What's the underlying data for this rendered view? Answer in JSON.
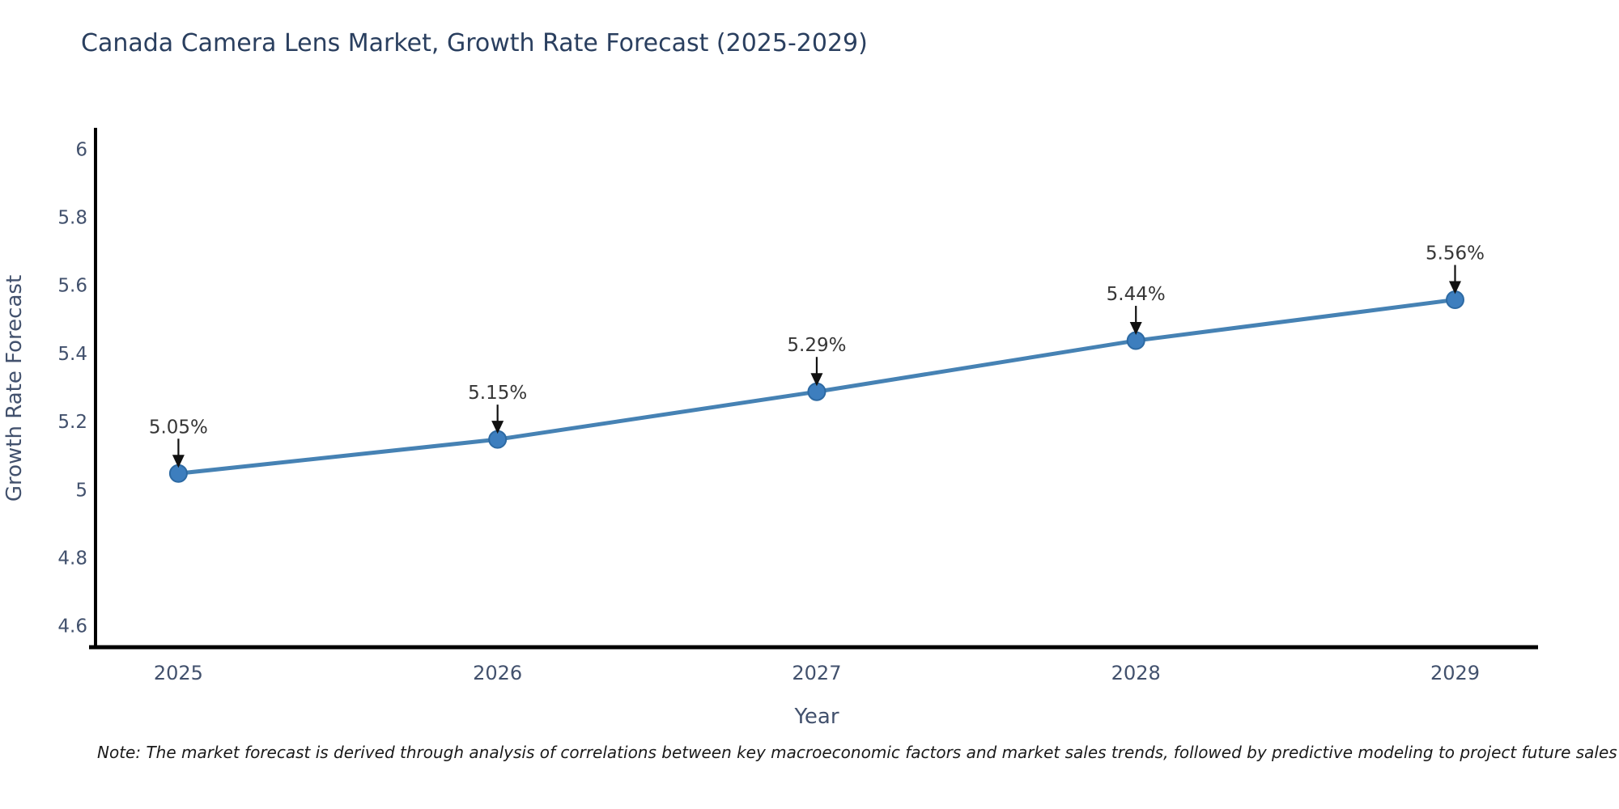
{
  "title": "Canada Camera Lens Market, Growth Rate Forecast (2025-2029)",
  "note": "Note: The market forecast is derived through analysis of correlations between key macroeconomic factors and market sales trends, followed by predictive modeling to project future sales",
  "chart_data": {
    "type": "line",
    "title": "Canada Camera Lens Market, Growth Rate Forecast (2025-2029)",
    "xlabel": "Year",
    "ylabel": "Growth Rate Forecast",
    "x": [
      2025,
      2026,
      2027,
      2028,
      2029
    ],
    "series": [
      {
        "name": "Growth Rate Forecast",
        "values": [
          5.05,
          5.15,
          5.29,
          5.44,
          5.56
        ]
      }
    ],
    "annotations": [
      "5.05%",
      "5.15%",
      "5.29%",
      "5.44%",
      "5.56%"
    ],
    "xtick_labels": [
      "2025",
      "2026",
      "2027",
      "2028",
      "2029"
    ],
    "ytick_labels": [
      "4.6",
      "4.8",
      "5",
      "5.2",
      "5.4",
      "5.6",
      "5.8",
      "6"
    ],
    "yticks": [
      4.6,
      4.8,
      5.0,
      5.2,
      5.4,
      5.6,
      5.8,
      6.0
    ],
    "xlim": [
      2024.72,
      2029.26
    ],
    "ylim": [
      4.54,
      6.06
    ],
    "grid": false,
    "legend": "none",
    "colors": {
      "line": "#4682b4",
      "marker_fill": "#3d7ebe",
      "marker_edge": "#2d6aa3",
      "arrow": "#111111",
      "annotation_text": "#363636",
      "axis_line": "#000000",
      "tick_text": "#42516d",
      "axis_title_text": "#42516d",
      "title_text": "#2a3f5f",
      "background": "#ffffff"
    }
  }
}
